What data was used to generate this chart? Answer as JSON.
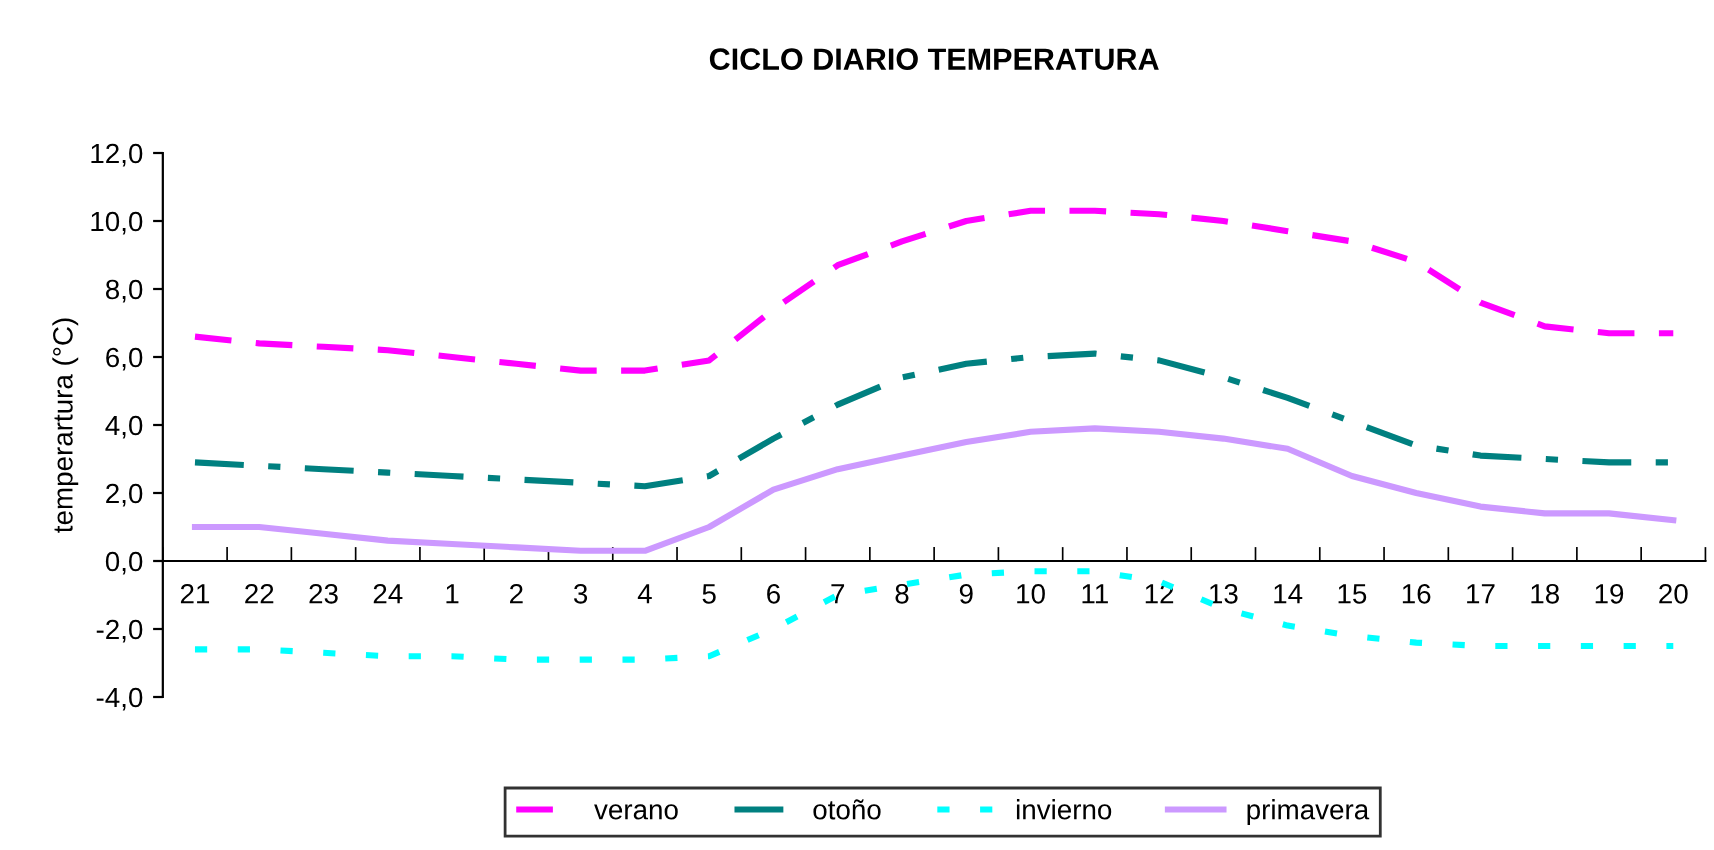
{
  "chart_data": {
    "type": "line",
    "title": "CICLO DIARIO TEMPERATURA",
    "ylabel": "temperartura (°C)",
    "categories": [
      "21",
      "22",
      "23",
      "24",
      "1",
      "2",
      "3",
      "4",
      "5",
      "6",
      "7",
      "8",
      "9",
      "10",
      "11",
      "12",
      "13",
      "14",
      "15",
      "16",
      "17",
      "18",
      "19",
      "20"
    ],
    "series": [
      {
        "name": "verano",
        "color": "#ff00ff",
        "line_style": "dashed",
        "values": [
          6.6,
          6.4,
          6.3,
          6.2,
          6.0,
          5.8,
          5.6,
          5.6,
          5.9,
          7.4,
          8.7,
          9.4,
          10.0,
          10.3,
          10.3,
          10.2,
          10.0,
          9.7,
          9.4,
          8.8,
          7.6,
          6.9,
          6.7,
          6.7
        ]
      },
      {
        "name": "otoño",
        "color": "#008080",
        "line_style": "dashdot",
        "values": [
          2.9,
          2.8,
          2.7,
          2.6,
          2.5,
          2.4,
          2.3,
          2.2,
          2.5,
          3.6,
          4.6,
          5.4,
          5.8,
          6.0,
          6.1,
          5.9,
          5.4,
          4.8,
          4.1,
          3.4,
          3.1,
          3.0,
          2.9,
          2.9
        ]
      },
      {
        "name": "invierno",
        "color": "#00ffff",
        "line_style": "dotted",
        "values": [
          -2.6,
          -2.6,
          -2.7,
          -2.8,
          -2.8,
          -2.9,
          -2.9,
          -2.9,
          -2.8,
          -2.0,
          -1.0,
          -0.7,
          -0.4,
          -0.3,
          -0.3,
          -0.6,
          -1.4,
          -1.9,
          -2.2,
          -2.4,
          -2.5,
          -2.5,
          -2.5,
          -2.5
        ]
      },
      {
        "name": "primavera",
        "color": "#cc99ff",
        "line_style": "solid",
        "values": [
          1.0,
          1.0,
          0.8,
          0.6,
          0.5,
          0.4,
          0.3,
          0.3,
          1.0,
          2.1,
          2.7,
          3.1,
          3.5,
          3.8,
          3.9,
          3.8,
          3.6,
          3.3,
          2.5,
          2.0,
          1.6,
          1.4,
          1.4,
          1.2
        ]
      }
    ],
    "ylim": [
      -4,
      12
    ],
    "yticks": [
      {
        "value": -4,
        "label": "-4,0"
      },
      {
        "value": -2,
        "label": "-2,0"
      },
      {
        "value": 0,
        "label": "0,0"
      },
      {
        "value": 2,
        "label": "2,0"
      },
      {
        "value": 4,
        "label": "4,0"
      },
      {
        "value": 6,
        "label": "6,0"
      },
      {
        "value": 8,
        "label": "8,0"
      },
      {
        "value": 10,
        "label": "10,0"
      },
      {
        "value": 12,
        "label": "12,0"
      }
    ],
    "grid": false,
    "legend": "bottom",
    "marker": "none"
  }
}
